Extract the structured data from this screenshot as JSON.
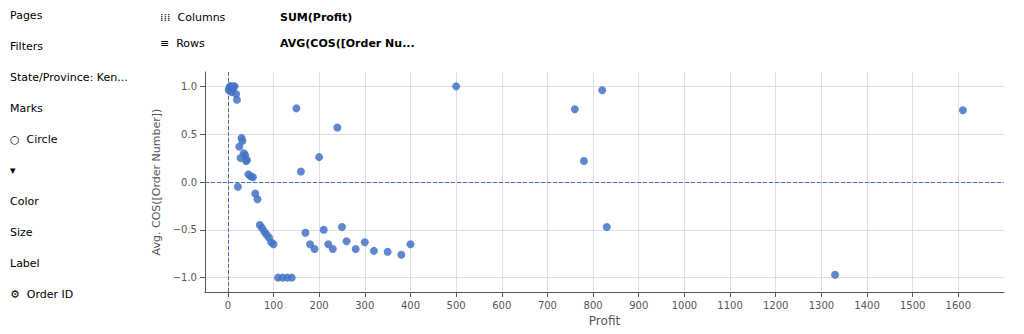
{
  "chart_data": {
    "type": "scatter",
    "title": "",
    "xlabel": "Profit",
    "ylabel": "Avg. COS([Order Number])",
    "annotations": [
      "Pages",
      "Filters",
      "State/Province: Ken...",
      "Marks",
      "○  Circle",
      "▾",
      "Color",
      "Size",
      "Label",
      "⚙  Order ID",
      "⁞⁞⁞  Columns",
      "SUM(Profit)",
      "≡  Rows",
      "AVG(COS([Order Nu..."
    ],
    "x": [
      2,
      3,
      5,
      6,
      8,
      10,
      12,
      15,
      18,
      20,
      22,
      25,
      28,
      30,
      32,
      35,
      38,
      40,
      42,
      45,
      50,
      55,
      60,
      65,
      70,
      75,
      80,
      85,
      90,
      95,
      100,
      110,
      120,
      130,
      140,
      150,
      160,
      170,
      180,
      190,
      200,
      210,
      220,
      230,
      240,
      250,
      260,
      280,
      300,
      320,
      350,
      380,
      400,
      500,
      760,
      780,
      820,
      830,
      1330,
      1610
    ],
    "values": [
      0.96,
      0.98,
      1.0,
      1.0,
      0.94,
      0.97,
      1.0,
      1.0,
      0.92,
      0.86,
      -0.05,
      0.37,
      0.25,
      0.46,
      0.43,
      0.3,
      0.28,
      0.22,
      0.23,
      0.08,
      0.06,
      0.05,
      -0.12,
      -0.18,
      -0.45,
      -0.48,
      -0.52,
      -0.55,
      -0.58,
      -0.63,
      -0.65,
      -1.0,
      -1.0,
      -1.0,
      -1.0,
      0.77,
      0.11,
      -0.53,
      -0.65,
      -0.7,
      0.26,
      -0.5,
      -0.65,
      -0.7,
      0.57,
      -0.47,
      -0.62,
      -0.7,
      -0.63,
      -0.72,
      -0.73,
      -0.76,
      -0.65,
      1.0,
      0.76,
      0.22,
      0.96,
      -0.47,
      -0.97,
      0.75
    ],
    "color": "#4472c4",
    "xlim": [
      -50,
      1700
    ],
    "ylim": [
      -1.15,
      1.15
    ],
    "xticks": [
      0,
      100,
      200,
      300,
      400,
      500,
      600,
      700,
      800,
      900,
      1000,
      1100,
      1200,
      1300,
      1400,
      1500,
      1600
    ],
    "yticks": [
      {
        "value": -1.0,
        "label": "−1.0"
      },
      {
        "value": -0.5,
        "label": "−0.5"
      },
      {
        "value": 0.0,
        "label": "0.0"
      },
      0.5,
      {
        "value": 1.0,
        "label": "1.0"
      }
    ],
    "vline_x": 0,
    "hline_y": 0.0,
    "grid": true
  }
}
